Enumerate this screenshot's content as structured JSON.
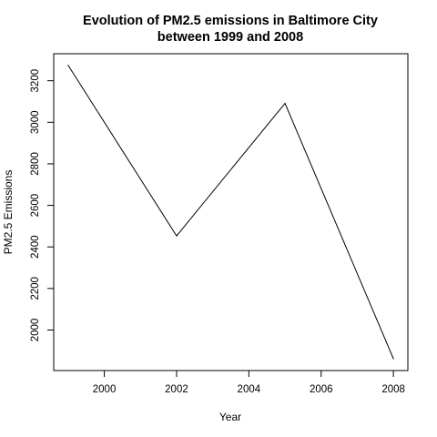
{
  "chart_data": {
    "type": "line",
    "title_line1": "Evolution of PM2.5 emissions in Baltimore City",
    "title_line2": "between 1999 and 2008",
    "xlabel": "Year",
    "ylabel": "PM2.5 Emissions",
    "x": [
      1999,
      2002,
      2005,
      2008
    ],
    "y": [
      3274,
      2453,
      3091,
      1862
    ],
    "xlim": [
      1998.6,
      2008.4
    ],
    "ylim": [
      1805,
      3330
    ],
    "xticks": [
      2000,
      2002,
      2004,
      2006,
      2008
    ],
    "yticks": [
      2000,
      2200,
      2400,
      2600,
      2800,
      3000,
      3200
    ],
    "line_color": "#000000",
    "grid": false,
    "legend": "none"
  }
}
